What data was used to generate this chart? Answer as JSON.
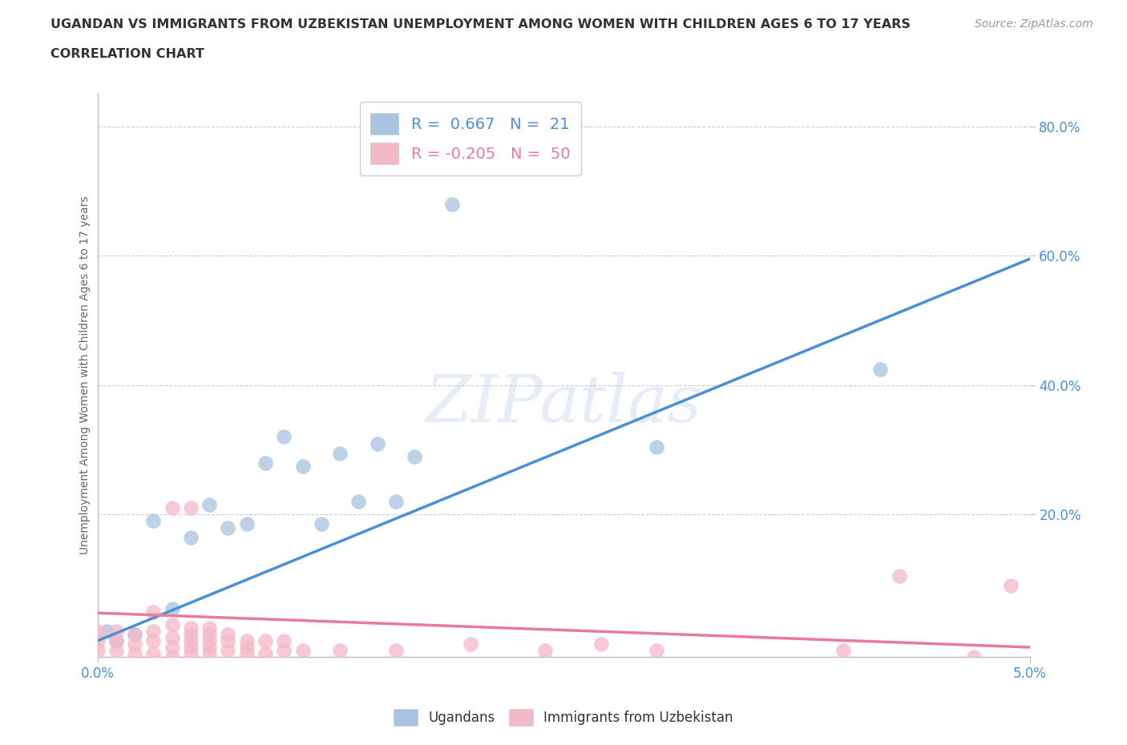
{
  "title_line1": "UGANDAN VS IMMIGRANTS FROM UZBEKISTAN UNEMPLOYMENT AMONG WOMEN WITH CHILDREN AGES 6 TO 17 YEARS",
  "title_line2": "CORRELATION CHART",
  "source_text": "Source: ZipAtlas.com",
  "ylabel": "Unemployment Among Women with Children Ages 6 to 17 years",
  "xlim": [
    0.0,
    0.05
  ],
  "ylim": [
    -0.02,
    0.85
  ],
  "ytick_labels": [
    "20.0%",
    "40.0%",
    "60.0%",
    "80.0%"
  ],
  "ytick_positions": [
    0.2,
    0.4,
    0.6,
    0.8
  ],
  "background_color": "#ffffff",
  "plot_bg_color": "#ffffff",
  "grid_color": "#cccccc",
  "watermark_text": "ZIPatlas",
  "ugandan_color": "#a8c4e0",
  "uzbekistan_color": "#f5b8c8",
  "line_ugandan_color": "#4a90d9",
  "line_uzbekistan_color": "#e87a9a",
  "ugandan_R": 0.667,
  "ugandan_N": 21,
  "uzbekistan_R": -0.205,
  "uzbekistan_N": 50,
  "ugandan_scatter": [
    [
      0.0005,
      0.02
    ],
    [
      0.001,
      0.005
    ],
    [
      0.002,
      0.015
    ],
    [
      0.003,
      0.19
    ],
    [
      0.004,
      0.055
    ],
    [
      0.005,
      0.165
    ],
    [
      0.006,
      0.215
    ],
    [
      0.007,
      0.18
    ],
    [
      0.008,
      0.185
    ],
    [
      0.009,
      0.28
    ],
    [
      0.01,
      0.32
    ],
    [
      0.011,
      0.275
    ],
    [
      0.012,
      0.185
    ],
    [
      0.013,
      0.295
    ],
    [
      0.014,
      0.22
    ],
    [
      0.015,
      0.31
    ],
    [
      0.016,
      0.22
    ],
    [
      0.017,
      0.29
    ],
    [
      0.019,
      0.68
    ],
    [
      0.03,
      0.305
    ],
    [
      0.042,
      0.425
    ]
  ],
  "uzbekistan_scatter": [
    [
      0.0,
      -0.01
    ],
    [
      0.0,
      0.005
    ],
    [
      0.0,
      0.02
    ],
    [
      0.001,
      -0.01
    ],
    [
      0.001,
      0.005
    ],
    [
      0.001,
      0.02
    ],
    [
      0.002,
      -0.015
    ],
    [
      0.002,
      0.0
    ],
    [
      0.002,
      0.015
    ],
    [
      0.003,
      -0.015
    ],
    [
      0.003,
      0.005
    ],
    [
      0.003,
      0.02
    ],
    [
      0.003,
      0.05
    ],
    [
      0.004,
      -0.02
    ],
    [
      0.004,
      -0.005
    ],
    [
      0.004,
      0.01
    ],
    [
      0.004,
      0.03
    ],
    [
      0.004,
      0.21
    ],
    [
      0.005,
      -0.015
    ],
    [
      0.005,
      -0.005
    ],
    [
      0.005,
      0.005
    ],
    [
      0.005,
      0.015
    ],
    [
      0.005,
      0.025
    ],
    [
      0.005,
      0.21
    ],
    [
      0.006,
      -0.015
    ],
    [
      0.006,
      -0.005
    ],
    [
      0.006,
      0.005
    ],
    [
      0.006,
      0.015
    ],
    [
      0.006,
      0.025
    ],
    [
      0.007,
      -0.01
    ],
    [
      0.007,
      0.005
    ],
    [
      0.007,
      0.015
    ],
    [
      0.008,
      -0.015
    ],
    [
      0.008,
      -0.005
    ],
    [
      0.008,
      0.005
    ],
    [
      0.009,
      -0.015
    ],
    [
      0.009,
      0.005
    ],
    [
      0.01,
      -0.01
    ],
    [
      0.01,
      0.005
    ],
    [
      0.011,
      -0.01
    ],
    [
      0.013,
      -0.01
    ],
    [
      0.016,
      -0.01
    ],
    [
      0.02,
      0.0
    ],
    [
      0.024,
      -0.01
    ],
    [
      0.027,
      0.0
    ],
    [
      0.03,
      -0.01
    ],
    [
      0.04,
      -0.01
    ],
    [
      0.043,
      0.105
    ],
    [
      0.047,
      -0.02
    ],
    [
      0.049,
      0.09
    ]
  ],
  "legend_entries": [
    {
      "label": "R =  0.667   N =  21",
      "color": "#a8c4e0"
    },
    {
      "label": "R = -0.205   N =  50",
      "color": "#f5b8c8"
    }
  ],
  "ugandan_trendline": [
    [
      0.0,
      0.005
    ],
    [
      0.05,
      0.595
    ]
  ],
  "uzbekistan_trendline": [
    [
      0.0,
      0.048
    ],
    [
      0.05,
      -0.005
    ]
  ]
}
